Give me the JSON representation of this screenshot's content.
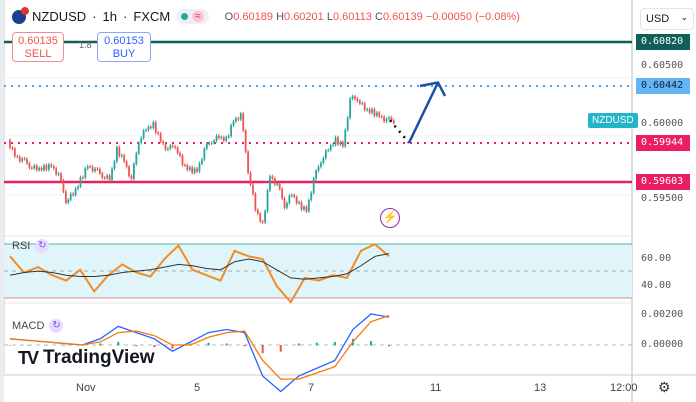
{
  "header": {
    "symbol": "NZDUSD",
    "interval": "1h",
    "exchange": "FXCM",
    "open": "0.60189",
    "high": "0.60201",
    "low": "0.60113",
    "close": "0.60139",
    "change": "−0.00050 (−0.08%)",
    "o": "O",
    "h": "H",
    "l": "L",
    "c": "C",
    "sep": "·"
  },
  "trade": {
    "sell_price": "0.60135",
    "sell_label": "SELL",
    "spread": "1.8",
    "buy_price": "0.60153",
    "buy_label": "BUY"
  },
  "currency": "USD",
  "price_labels": {
    "top": "0.60820",
    "blue": "0.60442",
    "dotted_red": "0.59944",
    "red": "0.59603",
    "symbol_tag": "NZDUSD"
  },
  "price_axis": [
    "0.60500",
    "0.60000",
    "0.59500"
  ],
  "rsi": {
    "label": "RSI",
    "axis": [
      "60.00",
      "40.00"
    ]
  },
  "macd": {
    "label": "MACD",
    "axis": [
      "0.00200",
      "0.00000"
    ]
  },
  "brand": "TradingView",
  "time_axis": [
    "Nov",
    "5",
    "7",
    "11",
    "13",
    "12:00"
  ],
  "colors": {
    "up": "#26a69a",
    "down": "#ef5350",
    "teal_line": "#0e5f5a",
    "blue_dotted": "#42a5f5",
    "red": "#e91e63",
    "arrow": "#1e4fa8",
    "rsi_line": "#f28c28",
    "rsi_ma": "#333333",
    "rsi_band": "#dff5f9"
  },
  "chart_data": {
    "type": "candlestick",
    "price_path": [
      0.59968,
      0.59838,
      0.59794,
      0.59751,
      0.59707,
      0.59725,
      0.59751,
      0.59664,
      0.59447,
      0.5949,
      0.5962,
      0.59751,
      0.59707,
      0.59664,
      0.5962,
      0.59881,
      0.59794,
      0.5962,
      0.59968,
      0.60055,
      0.60099,
      0.59968,
      0.59881,
      0.59925,
      0.59751,
      0.59707,
      0.59707,
      0.59881,
      0.59968,
      0.59986,
      0.59968,
      0.60142,
      0.60185,
      0.59707,
      0.5936,
      0.59229,
      0.59664,
      0.59577,
      0.59403,
      0.5949,
      0.59403,
      0.5936,
      0.5962,
      0.59794,
      0.59881,
      0.59968,
      0.59925,
      0.60316,
      0.60333,
      0.60229,
      0.60212,
      0.60185,
      0.60139
    ],
    "projection": [
      0.60139,
      0.59944,
      0.60442
    ],
    "rsi": [
      62,
      50,
      54,
      48,
      44,
      52,
      36,
      48,
      56,
      50,
      47,
      60,
      70,
      52,
      48,
      44,
      66,
      62,
      60,
      40,
      28,
      46,
      44,
      48,
      46,
      66,
      71,
      62
    ],
    "rsi_ma": [
      48,
      50,
      51,
      50,
      48,
      47,
      47,
      48,
      50,
      51,
      52,
      54,
      56,
      55,
      53,
      52,
      58,
      60,
      58,
      52,
      46,
      45,
      46,
      47,
      49,
      55,
      62,
      64
    ],
    "macd": [
      0.0004,
      0.0003,
      0.0002,
      0.0001,
      0.0,
      0.0004,
      0.0012,
      0.0008,
      0.0004,
      -0.0004,
      0.0002,
      0.0008,
      0.001,
      0.0008,
      -0.002,
      -0.003,
      -0.002,
      -0.0015,
      -0.001,
      0.001,
      0.002,
      0.0018
    ],
    "signal": [
      0.0004,
      0.0003,
      0.0002,
      0.0001,
      0.0,
      0.0002,
      0.0008,
      0.0009,
      0.0006,
      0.0,
      0.0,
      0.0005,
      0.0008,
      0.0009,
      -0.001,
      -0.0022,
      -0.0022,
      -0.0018,
      -0.0014,
      0.0002,
      0.0015,
      0.0019
    ]
  }
}
